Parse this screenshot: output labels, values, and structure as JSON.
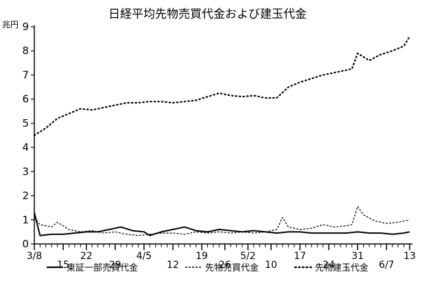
{
  "chart_data": {
    "type": "line",
    "title": "日経平均先物売買代金および建玉代金",
    "unit_label": "兆円",
    "ylim": [
      0,
      9
    ],
    "yticks": [
      0,
      1,
      2,
      3,
      4,
      5,
      6,
      7,
      8,
      9
    ],
    "x_range": [
      0,
      65
    ],
    "x_tick_labels": [
      {
        "x": 0,
        "label": "3/8"
      },
      {
        "x": 5,
        "label": "15"
      },
      {
        "x": 9,
        "label": "22"
      },
      {
        "x": 14,
        "label": "29"
      },
      {
        "x": 19,
        "label": "4/5"
      },
      {
        "x": 24,
        "label": "12"
      },
      {
        "x": 29,
        "label": "19"
      },
      {
        "x": 33,
        "label": "26"
      },
      {
        "x": 37,
        "label": "5/2"
      },
      {
        "x": 41,
        "label": "10"
      },
      {
        "x": 46,
        "label": "17"
      },
      {
        "x": 51,
        "label": "24"
      },
      {
        "x": 56,
        "label": "31"
      },
      {
        "x": 61,
        "label": "6/7"
      },
      {
        "x": 65,
        "label": "13"
      }
    ],
    "grid": false,
    "legend_position": "bottom",
    "series": [
      {
        "name": "東証一部売買代金",
        "style": "solid",
        "color": "#000000",
        "x": [
          0,
          1,
          3,
          5,
          7,
          9,
          11,
          13,
          15,
          17,
          19,
          20,
          22,
          24,
          26,
          28,
          30,
          32,
          34,
          36,
          38,
          40,
          42,
          44,
          46,
          48,
          50,
          52,
          54,
          56,
          58,
          60,
          62,
          64,
          65
        ],
        "y": [
          1.3,
          0.35,
          0.4,
          0.4,
          0.45,
          0.5,
          0.5,
          0.6,
          0.7,
          0.55,
          0.5,
          0.35,
          0.5,
          0.6,
          0.7,
          0.55,
          0.5,
          0.6,
          0.55,
          0.5,
          0.55,
          0.5,
          0.45,
          0.5,
          0.5,
          0.45,
          0.45,
          0.45,
          0.45,
          0.5,
          0.45,
          0.45,
          0.4,
          0.45,
          0.5
        ]
      },
      {
        "name": "先物売買代金",
        "style": "dashed",
        "color": "#000000",
        "x": [
          0,
          1,
          3,
          4,
          6,
          8,
          10,
          12,
          14,
          16,
          18,
          20,
          22,
          24,
          26,
          28,
          30,
          32,
          34,
          36,
          38,
          40,
          42,
          43,
          44,
          46,
          48,
          50,
          52,
          54,
          55,
          56,
          57,
          59,
          61,
          63,
          65
        ],
        "y": [
          1.1,
          0.8,
          0.7,
          0.9,
          0.6,
          0.5,
          0.55,
          0.45,
          0.5,
          0.4,
          0.35,
          0.4,
          0.45,
          0.45,
          0.4,
          0.5,
          0.45,
          0.5,
          0.45,
          0.5,
          0.45,
          0.5,
          0.6,
          1.1,
          0.7,
          0.6,
          0.65,
          0.8,
          0.7,
          0.75,
          0.8,
          1.55,
          1.2,
          0.95,
          0.85,
          0.9,
          1.0
        ]
      },
      {
        "name": "先物建玉代金",
        "style": "dotted",
        "color": "#000000",
        "x": [
          0,
          2,
          4,
          6,
          8,
          10,
          12,
          14,
          16,
          18,
          20,
          22,
          24,
          26,
          28,
          30,
          32,
          34,
          36,
          38,
          40,
          42,
          44,
          46,
          48,
          50,
          52,
          54,
          55,
          56,
          58,
          60,
          62,
          64,
          65
        ],
        "y": [
          4.5,
          4.8,
          5.2,
          5.4,
          5.6,
          5.55,
          5.65,
          5.75,
          5.85,
          5.85,
          5.9,
          5.9,
          5.85,
          5.9,
          5.95,
          6.1,
          6.25,
          6.15,
          6.1,
          6.15,
          6.05,
          6.05,
          6.5,
          6.7,
          6.85,
          7.0,
          7.1,
          7.2,
          7.25,
          7.9,
          7.6,
          7.85,
          8.0,
          8.2,
          8.6
        ]
      }
    ]
  }
}
